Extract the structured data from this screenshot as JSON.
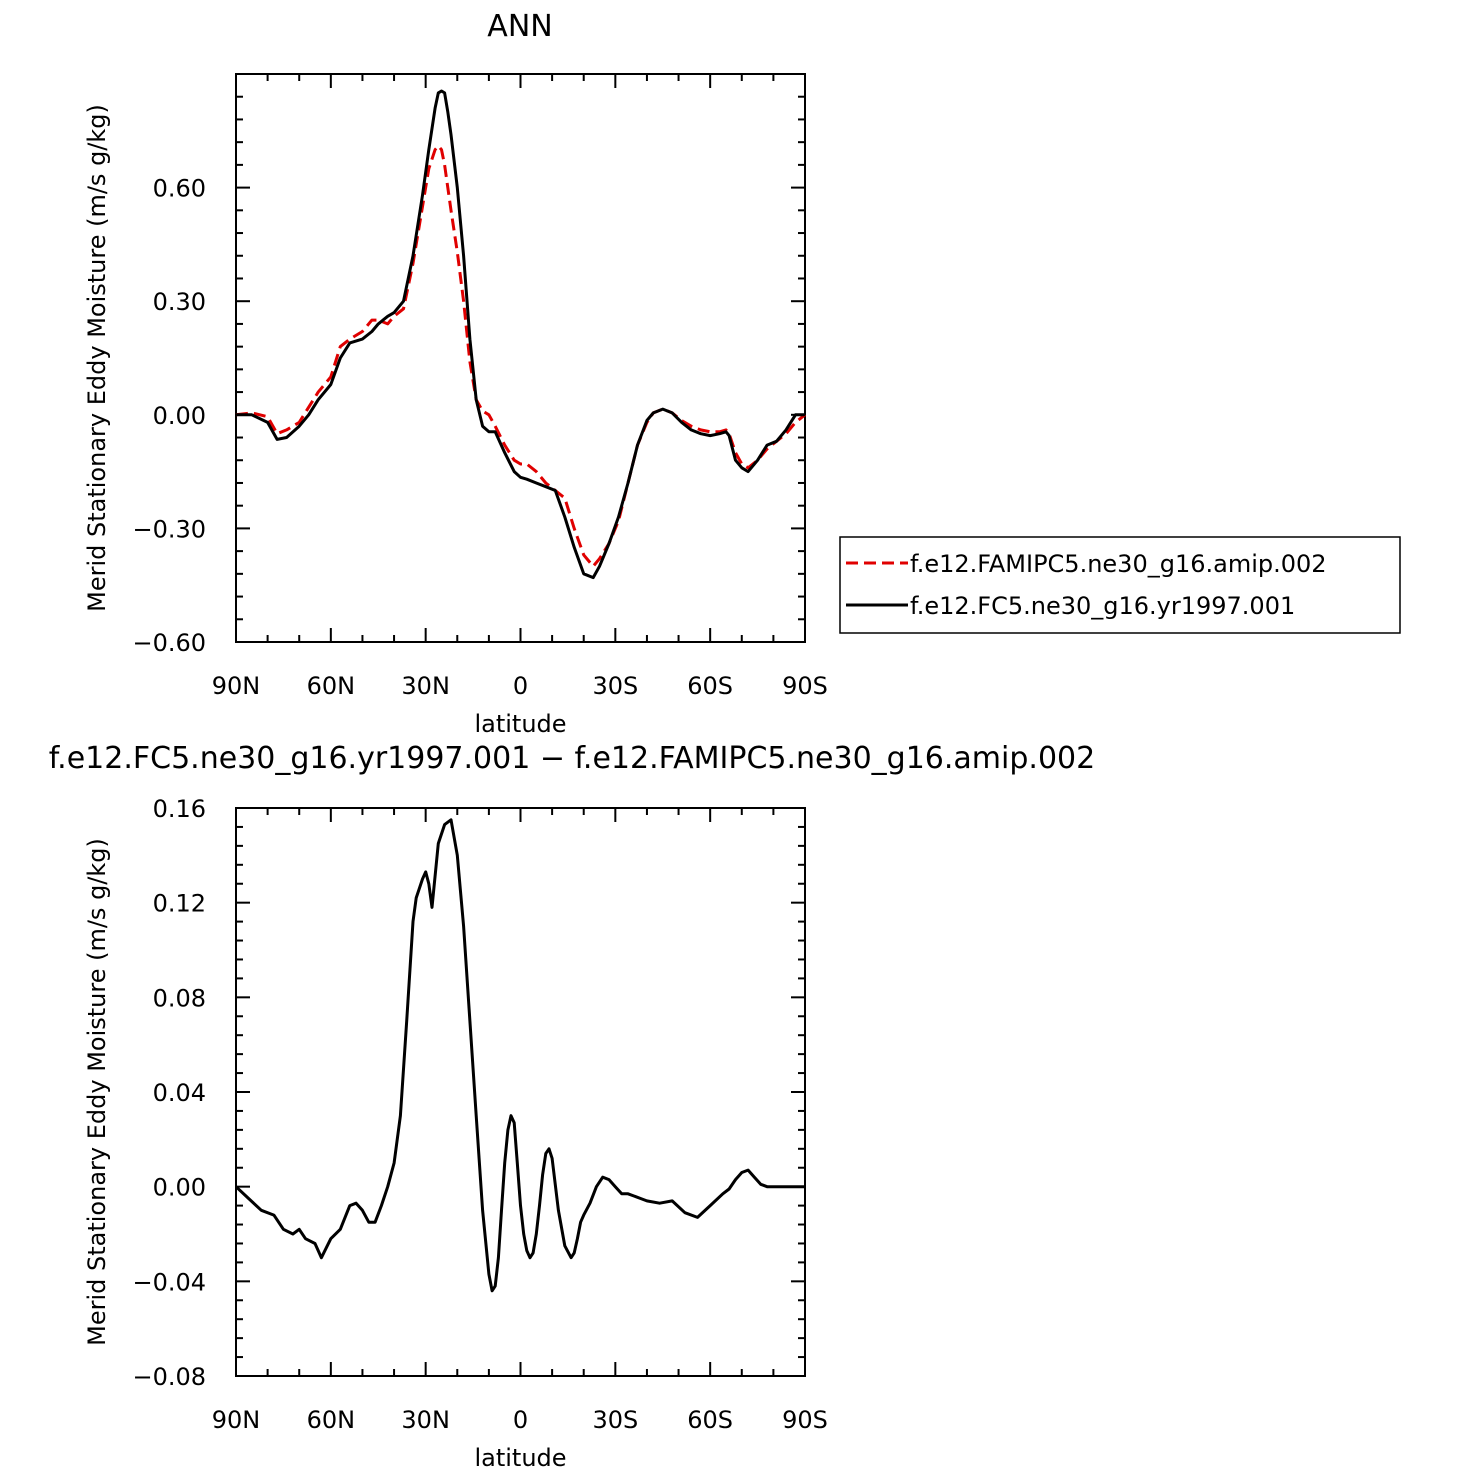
{
  "chart_data": [
    {
      "type": "line",
      "title": "ANN",
      "xlabel": "latitude",
      "ylabel": "Merid Stationary Eddy Moisture (m/s g/kg)",
      "xlim": [
        90,
        -90
      ],
      "ylim": [
        -0.6,
        0.9
      ],
      "x_ticks": [
        90,
        60,
        30,
        0,
        -30,
        -60,
        -90
      ],
      "x_tick_labels": [
        "90N",
        "60N",
        "30N",
        "0",
        "30S",
        "60S",
        "90S"
      ],
      "y_ticks": [
        -0.6,
        -0.3,
        0.0,
        0.3,
        0.6
      ],
      "y_tick_labels": [
        "−0.60",
        "−0.30",
        "0.00",
        "0.30",
        "0.60"
      ],
      "grid": false,
      "legend_position": "right",
      "series": [
        {
          "name": "f.e12.FAMIPC5.ne30_g16.amip.002",
          "color": "#e00000",
          "dash": "dashed",
          "x": [
            90,
            85,
            80,
            77,
            74,
            70,
            67,
            64,
            60,
            57,
            54,
            50,
            47,
            45,
            42,
            40,
            37,
            34,
            31,
            29,
            27,
            26,
            25,
            24,
            23,
            22,
            20,
            18,
            16,
            14,
            12,
            10,
            8,
            5,
            2,
            0,
            -2,
            -5,
            -8,
            -11,
            -14,
            -17,
            -20,
            -23,
            -25,
            -28,
            -31,
            -34,
            -37,
            -40,
            -42,
            -45,
            -48,
            -51,
            -54,
            -57,
            -60,
            -63,
            -65,
            -66,
            -68,
            -70,
            -72,
            -75,
            -78,
            -81,
            -84,
            -87,
            -90
          ],
          "y": [
            0.0,
            0.005,
            -0.005,
            -0.05,
            -0.04,
            -0.02,
            0.02,
            0.06,
            0.1,
            0.18,
            0.2,
            0.22,
            0.25,
            0.25,
            0.24,
            0.26,
            0.28,
            0.4,
            0.55,
            0.65,
            0.7,
            0.71,
            0.7,
            0.66,
            0.6,
            0.54,
            0.43,
            0.3,
            0.14,
            0.04,
            0.01,
            0.0,
            -0.03,
            -0.08,
            -0.12,
            -0.13,
            -0.13,
            -0.15,
            -0.18,
            -0.2,
            -0.22,
            -0.3,
            -0.37,
            -0.4,
            -0.38,
            -0.34,
            -0.28,
            -0.18,
            -0.08,
            -0.02,
            0.005,
            0.015,
            0.005,
            -0.015,
            -0.03,
            -0.04,
            -0.045,
            -0.045,
            -0.04,
            -0.05,
            -0.1,
            -0.13,
            -0.14,
            -0.12,
            -0.09,
            -0.07,
            -0.05,
            -0.02,
            0.0
          ]
        },
        {
          "name": "f.e12.FC5.ne30_g16.yr1997.001",
          "color": "#000000",
          "dash": "solid",
          "x": [
            90,
            85,
            80,
            77,
            74,
            70,
            67,
            64,
            60,
            57,
            54,
            50,
            47,
            45,
            42,
            40,
            37,
            34,
            31,
            29,
            27,
            26,
            25,
            24,
            23,
            22,
            20,
            18,
            16,
            14,
            12,
            10,
            8,
            5,
            2,
            0,
            -2,
            -5,
            -8,
            -11,
            -14,
            -17,
            -20,
            -23,
            -25,
            -28,
            -31,
            -34,
            -37,
            -40,
            -42,
            -45,
            -48,
            -51,
            -54,
            -57,
            -60,
            -63,
            -65,
            -66,
            -68,
            -70,
            -72,
            -75,
            -78,
            -81,
            -84,
            -87,
            -90
          ],
          "y": [
            0.0,
            0.0,
            -0.02,
            -0.065,
            -0.06,
            -0.03,
            0.0,
            0.04,
            0.08,
            0.15,
            0.19,
            0.2,
            0.22,
            0.24,
            0.26,
            0.27,
            0.3,
            0.42,
            0.58,
            0.7,
            0.81,
            0.85,
            0.855,
            0.85,
            0.8,
            0.74,
            0.6,
            0.42,
            0.2,
            0.04,
            -0.03,
            -0.045,
            -0.045,
            -0.1,
            -0.15,
            -0.165,
            -0.17,
            -0.18,
            -0.19,
            -0.2,
            -0.27,
            -0.35,
            -0.42,
            -0.43,
            -0.4,
            -0.34,
            -0.27,
            -0.18,
            -0.08,
            -0.015,
            0.005,
            0.015,
            0.005,
            -0.02,
            -0.04,
            -0.05,
            -0.055,
            -0.05,
            -0.045,
            -0.055,
            -0.12,
            -0.14,
            -0.15,
            -0.12,
            -0.08,
            -0.07,
            -0.04,
            0.0,
            0.0
          ]
        }
      ]
    },
    {
      "type": "line",
      "title": "f.e12.FC5.ne30_g16.yr1997.001 − f.e12.FAMIPC5.ne30_g16.amip.002",
      "xlabel": "latitude",
      "ylabel": "Merid Stationary Eddy Moisture (m/s g/kg)",
      "xlim": [
        90,
        -90
      ],
      "ylim": [
        -0.08,
        0.16
      ],
      "x_ticks": [
        90,
        60,
        30,
        0,
        -30,
        -60,
        -90
      ],
      "x_tick_labels": [
        "90N",
        "60N",
        "30N",
        "0",
        "30S",
        "60S",
        "90S"
      ],
      "y_ticks": [
        -0.08,
        -0.04,
        0.0,
        0.04,
        0.08,
        0.12,
        0.16
      ],
      "y_tick_labels": [
        "−0.08",
        "−0.04",
        "0.00",
        "0.04",
        "0.08",
        "0.12",
        "0.16"
      ],
      "grid": false,
      "series": [
        {
          "color": "#000000",
          "dash": "solid",
          "x": [
            90,
            86,
            82,
            78,
            75,
            72,
            70,
            68,
            65,
            63,
            60,
            57,
            54,
            52,
            50,
            48,
            46,
            44,
            42,
            40,
            38,
            36,
            34,
            33,
            31,
            30,
            29,
            28,
            26,
            24,
            22,
            20,
            18,
            16,
            14,
            12,
            10,
            9,
            8,
            7,
            6,
            5,
            4,
            3,
            2,
            1,
            0,
            -1,
            -2,
            -3,
            -4,
            -5,
            -6,
            -7,
            -8,
            -9,
            -10,
            -12,
            -14,
            -16,
            -17,
            -18,
            -19,
            -20,
            -22,
            -24,
            -26,
            -28,
            -30,
            -32,
            -34,
            -36,
            -38,
            -40,
            -44,
            -48,
            -52,
            -56,
            -60,
            -64,
            -66,
            -68,
            -70,
            -72,
            -74,
            -76,
            -78,
            -80,
            -82,
            -84,
            -86,
            -88,
            -90
          ],
          "y": [
            0.0,
            -0.005,
            -0.01,
            -0.012,
            -0.018,
            -0.02,
            -0.018,
            -0.022,
            -0.024,
            -0.03,
            -0.022,
            -0.018,
            -0.008,
            -0.007,
            -0.01,
            -0.015,
            -0.015,
            -0.008,
            0.0,
            0.01,
            0.03,
            0.07,
            0.112,
            0.122,
            0.13,
            0.133,
            0.128,
            0.118,
            0.145,
            0.153,
            0.155,
            0.14,
            0.11,
            0.07,
            0.03,
            -0.01,
            -0.037,
            -0.044,
            -0.042,
            -0.03,
            -0.01,
            0.01,
            0.024,
            0.03,
            0.027,
            0.01,
            -0.008,
            -0.02,
            -0.027,
            -0.03,
            -0.028,
            -0.02,
            -0.008,
            0.005,
            0.014,
            0.016,
            0.012,
            -0.01,
            -0.025,
            -0.03,
            -0.028,
            -0.022,
            -0.015,
            -0.012,
            -0.007,
            0.0,
            0.004,
            0.003,
            0.0,
            -0.003,
            -0.003,
            -0.004,
            -0.005,
            -0.006,
            -0.007,
            -0.006,
            -0.011,
            -0.013,
            -0.008,
            -0.003,
            -0.001,
            0.003,
            0.006,
            0.007,
            0.004,
            0.001,
            0.0,
            0.0,
            0.0,
            0.0,
            0.0,
            0.0,
            0.0
          ]
        }
      ]
    }
  ]
}
